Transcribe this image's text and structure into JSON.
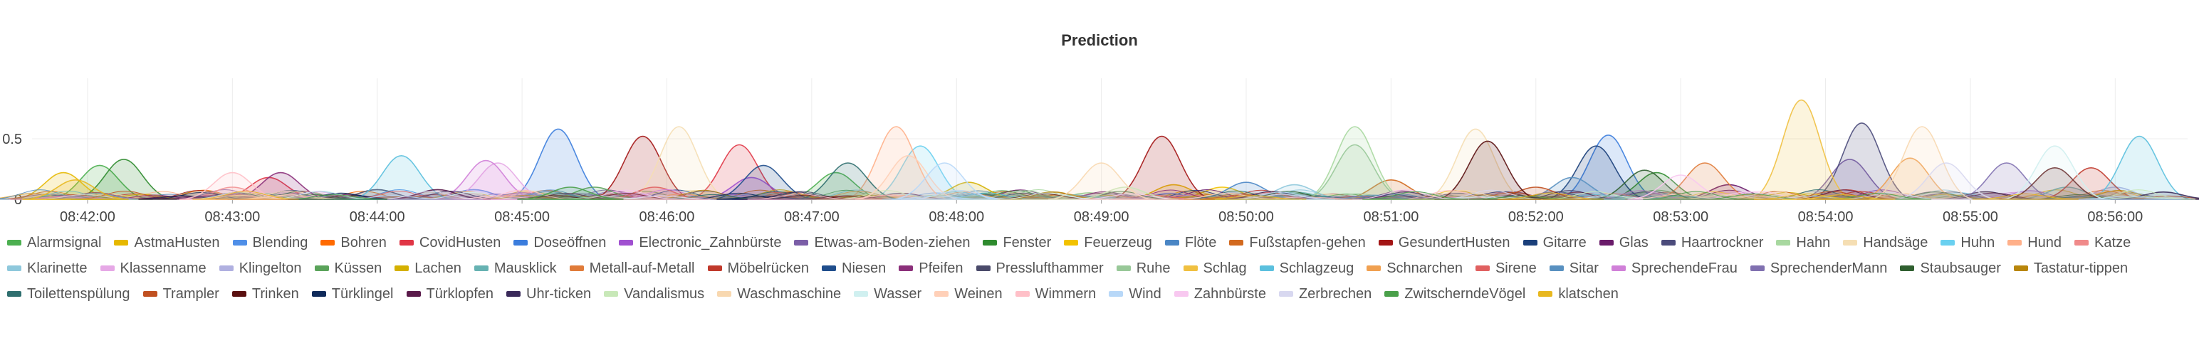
{
  "chart_data": {
    "type": "area",
    "title": "Prediction",
    "xlabel": "",
    "ylabel": "",
    "ylim": [
      0,
      1.0
    ],
    "y_ticks": [
      "0",
      "0.5"
    ],
    "x_ticks": [
      "08:42:00",
      "08:43:00",
      "08:44:00",
      "08:45:00",
      "08:46:00",
      "08:47:00",
      "08:48:00",
      "08:49:00",
      "08:50:00",
      "08:51:00",
      "08:52:00",
      "08:53:00",
      "08:54:00",
      "08:55:00",
      "08:56:00"
    ],
    "x_range": [
      "08:41:37",
      "08:56:30"
    ],
    "grid": true,
    "legend_position": "bottom",
    "series": [
      {
        "name": "Alarmsignal",
        "color": "#4caf50",
        "peaks": [
          [
            "08:42:05",
            0.28
          ],
          [
            "08:47:10",
            0.22
          ]
        ]
      },
      {
        "name": "AstmaHusten",
        "color": "#e6b800",
        "peaks": [
          [
            "08:41:50",
            0.22
          ],
          [
            "08:49:30",
            0.12
          ]
        ]
      },
      {
        "name": "Blending",
        "color": "#4f8fe8",
        "peaks": [
          [
            "08:44:40",
            0.08
          ]
        ]
      },
      {
        "name": "Bohren",
        "color": "#ff6a00",
        "peaks": [
          [
            "08:46:50",
            0.06
          ]
        ]
      },
      {
        "name": "CovidHusten",
        "color": "#e03545",
        "peaks": [
          [
            "08:46:30",
            0.45
          ],
          [
            "08:43:15",
            0.18
          ]
        ]
      },
      {
        "name": "Doseöffnen",
        "color": "#3b7ddd",
        "peaks": [
          [
            "08:45:15",
            0.58
          ],
          [
            "08:52:30",
            0.53
          ]
        ]
      },
      {
        "name": "Electronic_Zahnbürste",
        "color": "#a050d0",
        "peaks": [
          [
            "08:46:35",
            0.18
          ]
        ]
      },
      {
        "name": "Etwas-am-Boden-ziehen",
        "color": "#7b5ea7",
        "peaks": [
          [
            "08:54:10",
            0.33
          ]
        ]
      },
      {
        "name": "Fenster",
        "color": "#2e8b2e",
        "peaks": [
          [
            "08:42:15",
            0.33
          ],
          [
            "08:52:50",
            0.22
          ]
        ]
      },
      {
        "name": "Feuerzeug",
        "color": "#f2c200",
        "peaks": [
          [
            "08:49:50",
            0.1
          ]
        ]
      },
      {
        "name": "Flöte",
        "color": "#4a86c5",
        "peaks": [
          [
            "08:50:00",
            0.14
          ]
        ]
      },
      {
        "name": "Fußstapfen-gehen",
        "color": "#d2691e",
        "peaks": [
          [
            "08:51:00",
            0.16
          ]
        ]
      },
      {
        "name": "GesundertHusten",
        "color": "#a31515",
        "peaks": [
          [
            "08:45:50",
            0.52
          ],
          [
            "08:49:25",
            0.52
          ]
        ]
      },
      {
        "name": "Gitarre",
        "color": "#1a3f7a",
        "peaks": [
          [
            "08:52:25",
            0.44
          ]
        ]
      },
      {
        "name": "Glas",
        "color": "#6a1b6a",
        "peaks": [
          [
            "08:53:20",
            0.12
          ]
        ]
      },
      {
        "name": "Haartrockner",
        "color": "#4b4b7b",
        "peaks": [
          [
            "08:54:15",
            0.63
          ]
        ]
      },
      {
        "name": "Hahn",
        "color": "#a8d8a0",
        "peaks": [
          [
            "08:50:45",
            0.6
          ]
        ]
      },
      {
        "name": "Handsäge",
        "color": "#f5deb3",
        "peaks": [
          [
            "08:51:35",
            0.58
          ],
          [
            "08:46:05",
            0.6
          ]
        ]
      },
      {
        "name": "Huhn",
        "color": "#6ad0f0",
        "peaks": [
          [
            "08:47:45",
            0.44
          ]
        ]
      },
      {
        "name": "Hund",
        "color": "#ffb08a",
        "peaks": [
          [
            "08:47:35",
            0.6
          ]
        ]
      },
      {
        "name": "Katze",
        "color": "#f08a8a",
        "peaks": [
          [
            "08:43:00",
            0.1
          ]
        ]
      },
      {
        "name": "Klarinette",
        "color": "#8ec8dc",
        "peaks": [
          [
            "08:50:20",
            0.12
          ]
        ]
      },
      {
        "name": "Klassenname",
        "color": "#e6a8e6",
        "peaks": [
          [
            "08:44:50",
            0.3
          ]
        ]
      },
      {
        "name": "Klingelton",
        "color": "#b0b0e0",
        "peaks": [
          [
            "08:56:00",
            0.1
          ]
        ]
      },
      {
        "name": "Küssen",
        "color": "#5aa35a",
        "peaks": [
          [
            "08:45:30",
            0.1
          ]
        ]
      },
      {
        "name": "Lachen",
        "color": "#d4b000",
        "peaks": [
          [
            "08:48:05",
            0.14
          ]
        ]
      },
      {
        "name": "Mausklick",
        "color": "#66b2b2",
        "peaks": [
          [
            "08:55:40",
            0.1
          ]
        ]
      },
      {
        "name": "Metall-auf-Metall",
        "color": "#e07b39",
        "peaks": [
          [
            "08:53:10",
            0.3
          ]
        ]
      },
      {
        "name": "Möbelrücken",
        "color": "#c0392b",
        "peaks": [
          [
            "08:55:50",
            0.26
          ]
        ]
      },
      {
        "name": "Niesen",
        "color": "#1f4e8c",
        "peaks": [
          [
            "08:46:40",
            0.28
          ]
        ]
      },
      {
        "name": "Pfeifen",
        "color": "#8b2f7a",
        "peaks": [
          [
            "08:43:20",
            0.22
          ]
        ]
      },
      {
        "name": "Presslufthammer",
        "color": "#4a4a6a",
        "peaks": [
          [
            "08:44:00",
            0.08
          ]
        ]
      },
      {
        "name": "Ruhe",
        "color": "#98c898",
        "peaks": [
          [
            "08:50:45",
            0.45
          ]
        ]
      },
      {
        "name": "Schlag",
        "color": "#f0c040",
        "peaks": [
          [
            "08:53:50",
            0.82
          ]
        ]
      },
      {
        "name": "Schlagzeug",
        "color": "#5bc0de",
        "peaks": [
          [
            "08:56:10",
            0.52
          ],
          [
            "08:44:10",
            0.36
          ]
        ]
      },
      {
        "name": "Schnarchen",
        "color": "#f0a050",
        "peaks": [
          [
            "08:54:35",
            0.34
          ]
        ]
      },
      {
        "name": "Sirene",
        "color": "#e06060",
        "peaks": [
          [
            "08:45:55",
            0.1
          ]
        ]
      },
      {
        "name": "Sitar",
        "color": "#5890c0",
        "peaks": [
          [
            "08:52:15",
            0.18
          ]
        ]
      },
      {
        "name": "SprechendeFrau",
        "color": "#d080d8",
        "peaks": [
          [
            "08:44:45",
            0.32
          ]
        ]
      },
      {
        "name": "SprechenderMann",
        "color": "#8070b0",
        "peaks": [
          [
            "08:55:15",
            0.3
          ]
        ]
      },
      {
        "name": "Staubsauger",
        "color": "#2f5f2f",
        "peaks": [
          [
            "08:52:45",
            0.24
          ]
        ]
      },
      {
        "name": "Tastatur-tippen",
        "color": "#b8860b",
        "peaks": [
          [
            "08:48:40",
            0.06
          ]
        ]
      },
      {
        "name": "Toilettenspülung",
        "color": "#2f6f6f",
        "peaks": [
          [
            "08:47:15",
            0.3
          ]
        ]
      },
      {
        "name": "Trampler",
        "color": "#c05020",
        "peaks": [
          [
            "08:52:00",
            0.1
          ]
        ]
      },
      {
        "name": "Trinken",
        "color": "#5a1010",
        "peaks": [
          [
            "08:51:40",
            0.48
          ],
          [
            "08:55:35",
            0.26
          ]
        ]
      },
      {
        "name": "Türklingel",
        "color": "#0f2a5a",
        "peaks": [
          [
            "08:43:45",
            0.05
          ]
        ]
      },
      {
        "name": "Türklopfen",
        "color": "#5a1a4a",
        "peaks": [
          [
            "08:44:25",
            0.08
          ]
        ]
      },
      {
        "name": "Uhr-ticken",
        "color": "#3a2a5a",
        "peaks": [
          [
            "08:56:20",
            0.06
          ]
        ]
      },
      {
        "name": "Vandalismus",
        "color": "#c8e8b8",
        "peaks": [
          [
            "08:49:10",
            0.1
          ]
        ]
      },
      {
        "name": "Waschmaschine",
        "color": "#f8d8b0",
        "peaks": [
          [
            "08:54:40",
            0.6
          ],
          [
            "08:49:00",
            0.3
          ]
        ]
      },
      {
        "name": "Wasser",
        "color": "#d0f0f0",
        "peaks": [
          [
            "08:55:35",
            0.44
          ]
        ]
      },
      {
        "name": "Weinen",
        "color": "#ffd0b8",
        "peaks": [
          [
            "08:47:40",
            0.36
          ]
        ]
      },
      {
        "name": "Wimmern",
        "color": "#ffc0c8",
        "peaks": [
          [
            "08:43:00",
            0.22
          ]
        ]
      },
      {
        "name": "Wind",
        "color": "#b8d8f8",
        "peaks": [
          [
            "08:47:55",
            0.3
          ]
        ]
      },
      {
        "name": "Zahnbürste",
        "color": "#f8c8f0",
        "peaks": [
          [
            "08:53:00",
            0.2
          ]
        ]
      },
      {
        "name": "Zerbrechen",
        "color": "#d8d8f0",
        "peaks": [
          [
            "08:54:50",
            0.3
          ]
        ]
      },
      {
        "name": "ZwitscherndeVögel",
        "color": "#4aa04a",
        "peaks": [
          [
            "08:45:20",
            0.1
          ]
        ]
      },
      {
        "name": "klatschen",
        "color": "#e8b820",
        "peaks": [
          [
            "08:41:55",
            0.16
          ]
        ]
      }
    ]
  }
}
